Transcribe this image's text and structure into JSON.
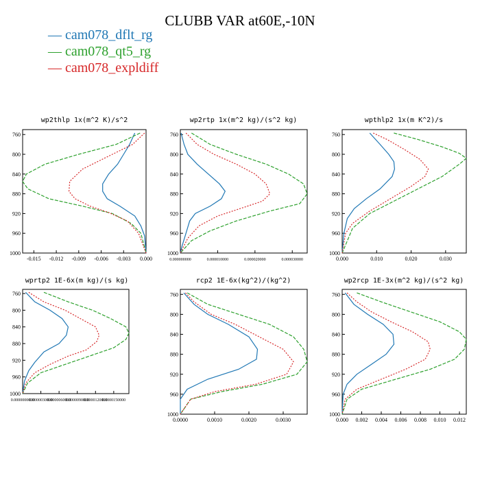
{
  "title": "CLUBB VAR at60E,-10N",
  "legend": [
    {
      "label": "cam078_dflt_rg",
      "color": "#1f77b4",
      "dash": ""
    },
    {
      "label": "cam078_qt5_rg",
      "color": "#2ca02c",
      "dash": "5,2"
    },
    {
      "label": "cam078_expldiff",
      "color": "#d62728",
      "dash": "2,2"
    }
  ],
  "chart_data": [
    {
      "type": "line",
      "title": "wp2thlp  1x(m^2 K)/s^2",
      "xlim": [
        -0.0165,
        0.0
      ],
      "ylim": [
        1000,
        750
      ],
      "xticks": [
        -0.015,
        -0.012,
        -0.009,
        -0.006,
        -0.003,
        0.0
      ],
      "xtick_labels": [
        "-0.015",
        "-0.012",
        "-0.009",
        "-0.006",
        "-0.003",
        "0.000"
      ],
      "yticks": [
        760,
        800,
        840,
        880,
        920,
        960,
        1000
      ],
      "ytick_labels": [
        "760",
        "800",
        "840",
        "880",
        "920",
        "960",
        "1000"
      ],
      "series": [
        {
          "name": "cam078_dflt_rg",
          "x": [
            -0.0015,
            -0.0022,
            -0.003,
            -0.0038,
            -0.005,
            -0.0058,
            -0.0058,
            -0.0052,
            -0.0035,
            -0.0015,
            -0.0007,
            -0.0002,
            0.0
          ],
          "y": [
            757,
            780,
            800,
            820,
            840,
            860,
            875,
            890,
            905,
            925,
            945,
            965,
            1000
          ]
        },
        {
          "name": "cam078_qt5_rg",
          "x": [
            -0.0008,
            -0.004,
            -0.009,
            -0.0135,
            -0.016,
            -0.0165,
            -0.0158,
            -0.013,
            -0.0085,
            -0.0045,
            -0.002,
            -0.0007,
            0.0
          ],
          "y": [
            757,
            780,
            800,
            820,
            840,
            855,
            870,
            890,
            905,
            920,
            940,
            960,
            1000
          ]
        },
        {
          "name": "cam078_expldiff",
          "x": [
            -0.0002,
            -0.0018,
            -0.0045,
            -0.0085,
            -0.0102,
            -0.0103,
            -0.0095,
            -0.0075,
            -0.005,
            -0.0025,
            -0.001,
            0.0
          ],
          "y": [
            757,
            780,
            800,
            830,
            855,
            875,
            890,
            905,
            918,
            935,
            960,
            1000
          ]
        }
      ]
    },
    {
      "type": "line",
      "title": "wp2rtp  1x(m^2 kg)/(s^2 kg)",
      "xlim": [
        0.0,
        3.4e-05
      ],
      "ylim": [
        1000,
        750
      ],
      "xticks": [
        0.0,
        1e-05,
        2e-05,
        3e-05
      ],
      "xtick_labels": [
        "0.000000000",
        "0.000010000",
        "0.000020000",
        "0.000030000"
      ],
      "yticks": [
        760,
        800,
        840,
        880,
        920,
        960,
        1000
      ],
      "ytick_labels": [
        "760",
        "800",
        "840",
        "880",
        "920",
        "960",
        "1000"
      ],
      "series": [
        {
          "name": "cam078_dflt_rg",
          "x": [
            2e-07,
            1e-06,
            2e-06,
            4.5e-06,
            7.5e-06,
            1.05e-05,
            1.2e-05,
            1.1e-05,
            8e-06,
            4e-06,
            2.5e-06,
            1.5e-06,
            5e-07,
            0.0
          ],
          "y": [
            757,
            780,
            800,
            820,
            840,
            860,
            875,
            890,
            905,
            920,
            935,
            960,
            985,
            1000
          ]
        },
        {
          "name": "cam078_qt5_rg",
          "x": [
            3e-06,
            8e-06,
            1.5e-05,
            2.3e-05,
            2.9e-05,
            3.3e-05,
            3.4e-05,
            3.2e-05,
            2.4e-05,
            1.5e-05,
            8e-06,
            3e-06,
            0.0
          ],
          "y": [
            757,
            780,
            800,
            820,
            840,
            860,
            880,
            900,
            915,
            935,
            955,
            975,
            1000
          ]
        },
        {
          "name": "cam078_expldiff",
          "x": [
            1.5e-06,
            4.5e-06,
            9e-06,
            1.5e-05,
            2e-05,
            2.3e-05,
            2.4e-05,
            2.2e-05,
            1.6e-05,
            1e-05,
            5e-06,
            2e-06,
            0.0
          ],
          "y": [
            757,
            780,
            800,
            820,
            840,
            860,
            880,
            895,
            910,
            925,
            945,
            970,
            1000
          ]
        }
      ]
    },
    {
      "type": "line",
      "title": "wpthlp2  1x(m K^2)/s",
      "xlim": [
        0.0,
        0.036
      ],
      "ylim": [
        1000,
        750
      ],
      "xticks": [
        0.0,
        0.01,
        0.02,
        0.03
      ],
      "xtick_labels": [
        "0.000",
        "0.010",
        "0.020",
        "0.030"
      ],
      "yticks": [
        760,
        800,
        840,
        880,
        920,
        960,
        1000
      ],
      "ytick_labels": [
        "760",
        "800",
        "840",
        "880",
        "920",
        "960",
        "1000"
      ],
      "series": [
        {
          "name": "cam078_dflt_rg",
          "x": [
            0.008,
            0.011,
            0.0135,
            0.015,
            0.0152,
            0.0145,
            0.011,
            0.007,
            0.0035,
            0.0015,
            0.0005,
            0.0
          ],
          "y": [
            757,
            780,
            800,
            815,
            830,
            845,
            870,
            890,
            910,
            930,
            960,
            1000
          ]
        },
        {
          "name": "cam078_qt5_rg",
          "x": [
            0.015,
            0.022,
            0.029,
            0.034,
            0.036,
            0.034,
            0.029,
            0.022,
            0.015,
            0.008,
            0.003,
            0.0
          ],
          "y": [
            757,
            770,
            785,
            798,
            808,
            820,
            845,
            870,
            895,
            920,
            950,
            1000
          ]
        },
        {
          "name": "cam078_expldiff",
          "x": [
            0.009,
            0.013,
            0.018,
            0.0225,
            0.025,
            0.024,
            0.02,
            0.014,
            0.008,
            0.003,
            0.001,
            0.0
          ],
          "y": [
            757,
            770,
            790,
            810,
            830,
            845,
            865,
            890,
            915,
            940,
            960,
            1000
          ]
        }
      ]
    },
    {
      "type": "line",
      "title": "wprtp2  1E-6x(m kg)/(s kg)",
      "xlim": [
        0.0,
        1.75e-05
      ],
      "ylim": [
        1000,
        750
      ],
      "xticks": [
        0.0,
        3e-06,
        6e-06,
        9e-06,
        1.2e-05,
        1.5e-05
      ],
      "xtick_labels": [
        "0.0000000000",
        "0.0000030000",
        "0.0000060000",
        "0.0000090000",
        "0.0000120000",
        "0.0000150000"
      ],
      "yticks": [
        760,
        800,
        840,
        880,
        920,
        960,
        1000
      ],
      "ytick_labels": [
        "760",
        "800",
        "840",
        "880",
        "920",
        "960",
        "1000"
      ],
      "series": [
        {
          "name": "cam078_dflt_rg",
          "x": [
            5e-07,
            2e-06,
            4.5e-06,
            6.5e-06,
            7.5e-06,
            7.2e-06,
            6e-06,
            3.5e-06,
            2e-06,
            1e-06,
            3e-07,
            0.0
          ],
          "y": [
            757,
            780,
            800,
            820,
            840,
            860,
            880,
            900,
            925,
            945,
            970,
            1000
          ]
        },
        {
          "name": "cam078_qt5_rg",
          "x": [
            3.5e-06,
            7.5e-06,
            1.15e-05,
            1.45e-05,
            1.7e-05,
            1.75e-05,
            1.7e-05,
            1.5e-05,
            1.1e-05,
            7e-06,
            3e-06,
            8e-07,
            0.0
          ],
          "y": [
            757,
            780,
            800,
            820,
            840,
            855,
            870,
            890,
            910,
            930,
            950,
            975,
            1000
          ]
        },
        {
          "name": "cam078_expldiff",
          "x": [
            1e-06,
            3.5e-06,
            7e-06,
            9.5e-06,
            1.2e-05,
            1.26e-05,
            1.22e-05,
            1.05e-05,
            7.5e-06,
            4.5e-06,
            2e-06,
            5e-07,
            0.0
          ],
          "y": [
            757,
            780,
            800,
            820,
            840,
            860,
            875,
            895,
            910,
            930,
            950,
            975,
            1000
          ]
        }
      ]
    },
    {
      "type": "line",
      "title": "rcp2  1E-6x(kg^2)/(kg^2)",
      "xlim": [
        0.0,
        0.0037
      ],
      "ylim": [
        1000,
        750
      ],
      "xticks": [
        0.0,
        0.001,
        0.002,
        0.003
      ],
      "xtick_labels": [
        "0.0000",
        "0.0010",
        "0.0020",
        "0.0030"
      ],
      "yticks": [
        760,
        800,
        840,
        880,
        920,
        960,
        1000
      ],
      "ytick_labels": [
        "760",
        "800",
        "840",
        "880",
        "920",
        "960",
        "1000"
      ],
      "series": [
        {
          "name": "cam078_dflt_rg",
          "x": [
            0.0001,
            0.0004,
            0.0008,
            0.0014,
            0.002,
            0.00225,
            0.00222,
            0.0017,
            0.0008,
            0.0002,
            0.0,
            0.0
          ],
          "y": [
            757,
            780,
            800,
            820,
            845,
            870,
            890,
            910,
            930,
            950,
            970,
            1000
          ]
        },
        {
          "name": "cam078_qt5_rg",
          "x": [
            0.0002,
            0.0008,
            0.0017,
            0.0026,
            0.0033,
            0.0036,
            0.0037,
            0.0034,
            0.0024,
            0.0012,
            0.0003,
            0.0
          ],
          "y": [
            757,
            780,
            800,
            820,
            845,
            870,
            895,
            920,
            940,
            955,
            970,
            1000
          ]
        },
        {
          "name": "cam078_expldiff",
          "x": [
            0.00015,
            0.0004,
            0.0009,
            0.0016,
            0.0023,
            0.003,
            0.0033,
            0.0031,
            0.0022,
            0.001,
            0.0003,
            0.0
          ],
          "y": [
            757,
            775,
            800,
            820,
            845,
            870,
            895,
            920,
            940,
            955,
            970,
            1000
          ]
        }
      ]
    },
    {
      "type": "line",
      "title": "wp2rcp  1E-3x(m^2 kg)/(s^2 kg)",
      "xlim": [
        0.0,
        0.0127
      ],
      "ylim": [
        1000,
        750
      ],
      "xticks": [
        0.0,
        0.002,
        0.004,
        0.006,
        0.008,
        0.01,
        0.012
      ],
      "xtick_labels": [
        "0.000",
        "0.002",
        "0.004",
        "0.006",
        "0.008",
        "0.010",
        "0.012"
      ],
      "yticks": [
        760,
        800,
        840,
        880,
        920,
        960,
        1000
      ],
      "ytick_labels": [
        "760",
        "800",
        "840",
        "880",
        "920",
        "960",
        "1000"
      ],
      "series": [
        {
          "name": "cam078_dflt_rg",
          "x": [
            0.0003,
            0.0012,
            0.0026,
            0.0042,
            0.0052,
            0.0053,
            0.0045,
            0.003,
            0.0015,
            0.0005,
            0.0001,
            0.0
          ],
          "y": [
            757,
            780,
            800,
            820,
            840,
            860,
            880,
            900,
            920,
            940,
            960,
            1000
          ]
        },
        {
          "name": "cam078_qt5_rg",
          "x": [
            0.0015,
            0.004,
            0.007,
            0.01,
            0.012,
            0.0127,
            0.0125,
            0.0115,
            0.009,
            0.0055,
            0.002,
            0.0005,
            0.0
          ],
          "y": [
            757,
            775,
            795,
            815,
            835,
            850,
            870,
            890,
            910,
            930,
            950,
            970,
            1000
          ]
        },
        {
          "name": "cam078_expldiff",
          "x": [
            0.0005,
            0.0015,
            0.003,
            0.005,
            0.0072,
            0.0088,
            0.009,
            0.0085,
            0.0065,
            0.004,
            0.0015,
            0.0003,
            0.0
          ],
          "y": [
            757,
            775,
            795,
            815,
            835,
            855,
            870,
            890,
            910,
            930,
            950,
            970,
            1000
          ]
        }
      ]
    }
  ]
}
